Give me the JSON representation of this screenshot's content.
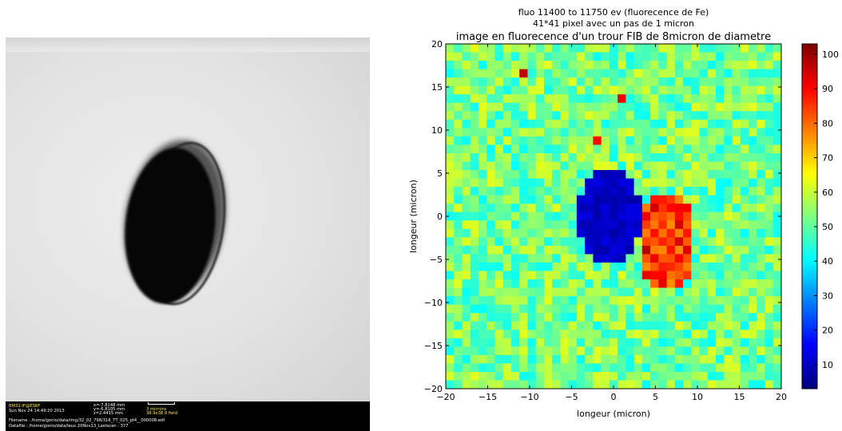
{
  "microscope": {
    "lab": "BM32-IF@ESRF",
    "datetime": "Sun Nov 24 14:49:20 2013",
    "x": "x=-7.8148 mm",
    "y": "y=-6.8105 mm",
    "z": "z=2.4415 mm",
    "scale": "3 microns",
    "field": "38.9x38.9 field",
    "filename": "Filename : /home/gonio/data/img/32_02_798/316_TT_025_pt4__000008.edf",
    "datafile": "Datafile : /home/gonio/data/Ieux 20Nov13_Lastscan : 377"
  },
  "chart_data": {
    "type": "heatmap",
    "title_lines": [
      "fluo 11400 to 11750 ev (fluorecence de Fe)",
      "41*41 pixel avec un pas de 1 micron"
    ],
    "subtitle": "image en fluorecence d'un trour FIB de 8micron de diametre",
    "xlabel": "longeur (micron)",
    "ylabel": "longeur (micron)",
    "xlim": [
      -20,
      20
    ],
    "ylim": [
      -20,
      20
    ],
    "xticks": [
      "−20",
      "−15",
      "−10",
      "−5",
      "0",
      "5",
      "10",
      "15",
      "20"
    ],
    "yticks": [
      "−20",
      "−15",
      "−10",
      "−5",
      "0",
      "5",
      "10",
      "15",
      "20"
    ],
    "grid_size": [
      41,
      41
    ],
    "step_micron": 1,
    "colorbar_range": [
      3,
      103
    ],
    "colorbar_ticks": [
      "10",
      "20",
      "30",
      "40",
      "50",
      "60",
      "70",
      "80",
      "90",
      "100"
    ],
    "colormap": "jet",
    "background_level": 52,
    "features": [
      {
        "kind": "low",
        "center": [
          -0.5,
          0
        ],
        "radii": [
          4,
          6
        ],
        "value": 7
      },
      {
        "kind": "high",
        "center": [
          6.5,
          -3
        ],
        "radii": [
          3.5,
          6
        ],
        "value": 88
      },
      {
        "kind": "hotspot",
        "center": [
          -11,
          17
        ],
        "value": 96
      },
      {
        "kind": "hotspot",
        "center": [
          1,
          14
        ],
        "value": 92
      },
      {
        "kind": "hotspot",
        "center": [
          -2,
          9
        ],
        "value": 90
      }
    ]
  }
}
